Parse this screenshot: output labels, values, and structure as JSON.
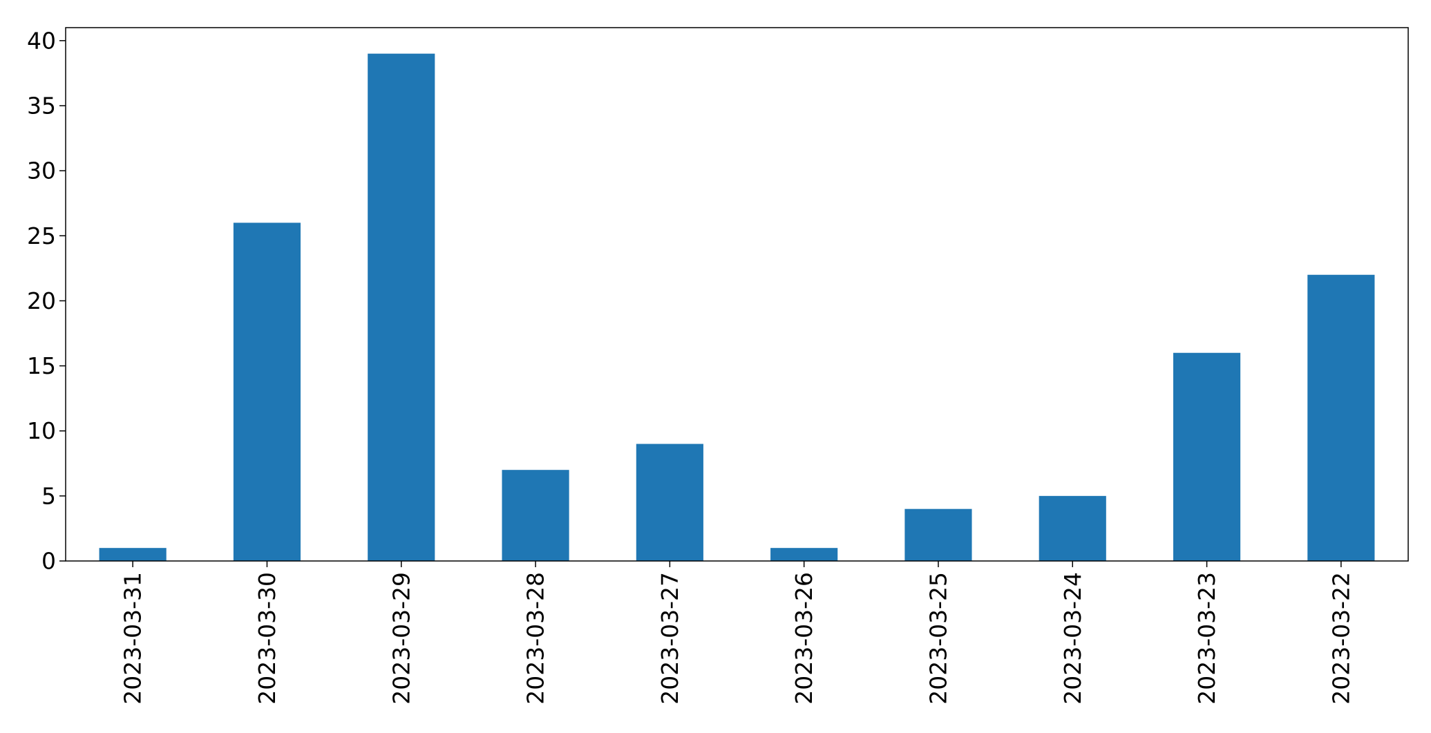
{
  "chart_data": {
    "type": "bar",
    "title": "",
    "xlabel": "",
    "ylabel": "",
    "categories": [
      "2023-03-31",
      "2023-03-30",
      "2023-03-29",
      "2023-03-28",
      "2023-03-27",
      "2023-03-26",
      "2023-03-25",
      "2023-03-24",
      "2023-03-23",
      "2023-03-22"
    ],
    "values": [
      1,
      26,
      39,
      7,
      9,
      1,
      4,
      5,
      16,
      22
    ],
    "ylim": [
      0,
      41
    ],
    "yticks": [
      0,
      5,
      10,
      15,
      20,
      25,
      30,
      35,
      40
    ],
    "grid": false,
    "legend": "none",
    "bar_color": "#1f77b4"
  }
}
